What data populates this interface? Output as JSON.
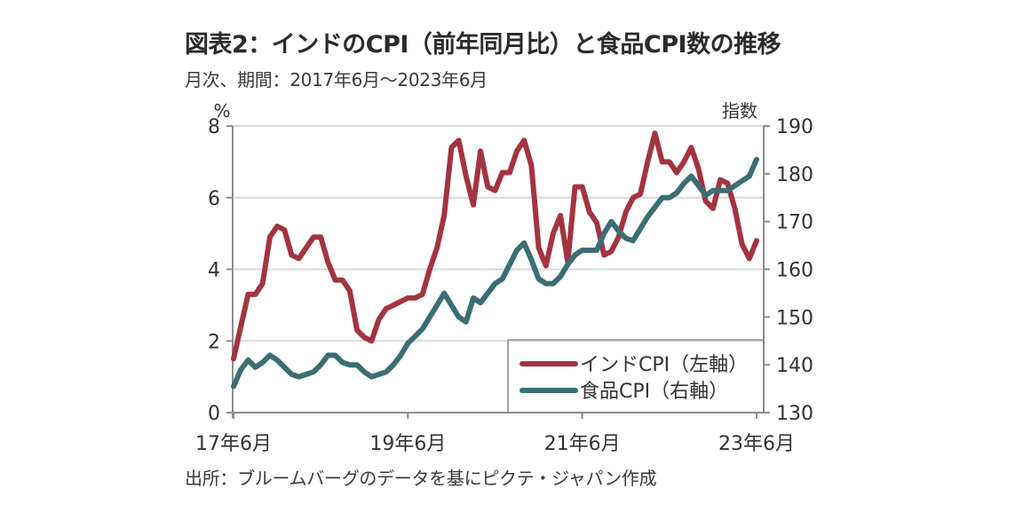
{
  "title": "図表2：インドのCPI（前年同月比）と食品CPI数の推移",
  "subtitle": "月次、期間：2017年6月～2023年6月",
  "source": "出所：ブルームバーグのデータを基にピクテ・ジャパン作成",
  "chart_data": {
    "type": "line",
    "title": "図表2：インドのCPI（前年同月比）と食品CPI数の推移",
    "subtitle": "月次、期間：2017年6月～2023年6月",
    "xlabel": "",
    "ylabel_left": "%",
    "ylabel_right": "指数",
    "ylim_left": [
      0,
      8
    ],
    "ylim_right": [
      130,
      190
    ],
    "yticks_left": [
      "0",
      "2",
      "4",
      "6",
      "8"
    ],
    "yticks_right": [
      "130",
      "140",
      "150",
      "160",
      "170",
      "180",
      "190"
    ],
    "xticks": [
      "17年6月",
      "19年6月",
      "21年6月",
      "23年6月"
    ],
    "xtick_month_index": [
      0,
      24,
      48,
      72
    ],
    "grid": "horizontal",
    "legend_position": "bottom-right",
    "start_month": "2017-06",
    "end_month": "2023-06",
    "series": [
      {
        "name": "インドCPI（左軸）",
        "axis": "left",
        "color": "#a3343f",
        "values": [
          1.5,
          2.4,
          3.3,
          3.3,
          3.6,
          4.9,
          5.2,
          5.1,
          4.4,
          4.3,
          4.6,
          4.9,
          4.9,
          4.2,
          3.7,
          3.7,
          3.4,
          2.3,
          2.1,
          2.0,
          2.6,
          2.9,
          3.0,
          3.1,
          3.2,
          3.2,
          3.3,
          4.0,
          4.6,
          5.5,
          7.4,
          7.6,
          6.6,
          5.8,
          7.3,
          6.3,
          6.2,
          6.7,
          6.7,
          7.3,
          7.6,
          6.9,
          4.6,
          4.1,
          5.0,
          5.5,
          4.2,
          6.3,
          6.3,
          5.6,
          5.3,
          4.4,
          4.5,
          4.9,
          5.6,
          6.0,
          6.1,
          7.0,
          7.8,
          7.0,
          7.0,
          6.7,
          7.0,
          7.4,
          6.8,
          5.9,
          5.7,
          6.5,
          6.4,
          5.7,
          4.7,
          4.3,
          4.8
        ]
      },
      {
        "name": "食品CPI（右軸）",
        "axis": "right",
        "color": "#3a6e74",
        "values": [
          135.5,
          139,
          141,
          139.5,
          140.5,
          142,
          141,
          139.5,
          138,
          137.5,
          138,
          138.5,
          140,
          142,
          142,
          140.5,
          140,
          140,
          138.5,
          137.5,
          138,
          138.5,
          140,
          142,
          144.5,
          146,
          147.5,
          150,
          152.5,
          155,
          152.5,
          150,
          149,
          154,
          153,
          155,
          157,
          158,
          161,
          164,
          165.5,
          162,
          158,
          157,
          157,
          158.5,
          161,
          163,
          164,
          164,
          164,
          167.5,
          170,
          168,
          166.5,
          166,
          168.5,
          171,
          173,
          175,
          175,
          176,
          178,
          179.5,
          177.5,
          175.5,
          176.5,
          176.5,
          176.5,
          177.5,
          178.5,
          179.5,
          183
        ]
      }
    ]
  }
}
